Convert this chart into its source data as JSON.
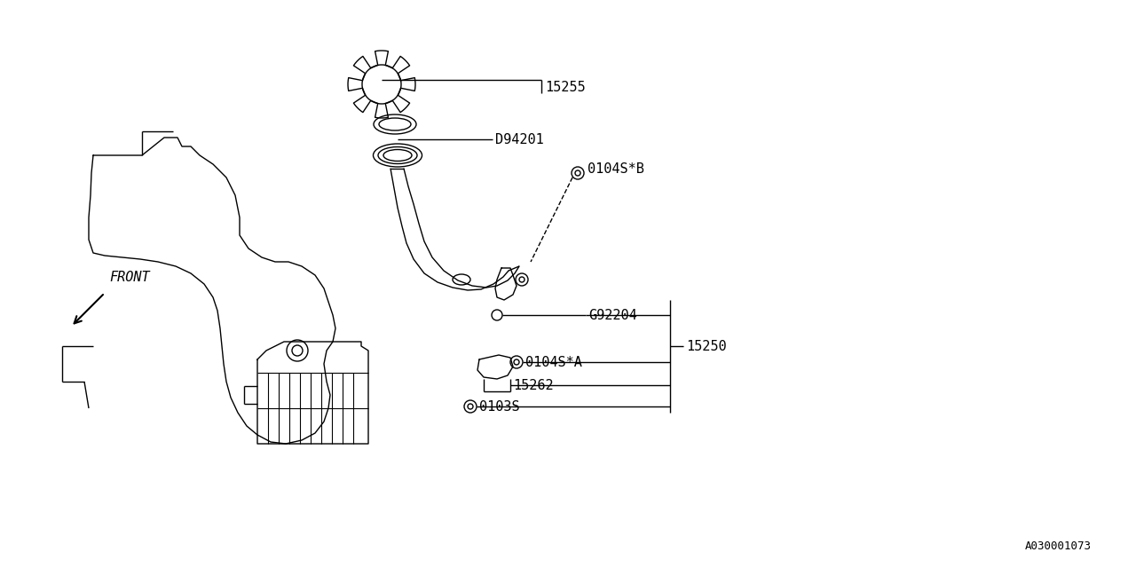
{
  "bg_color": "#ffffff",
  "line_color": "#000000",
  "diagram_id": "A030001073",
  "front_label": "FRONT",
  "parts": [
    "15255",
    "D94201",
    "0104S*B",
    "G92204",
    "15250",
    "0104S*A",
    "15262",
    "0103S"
  ]
}
